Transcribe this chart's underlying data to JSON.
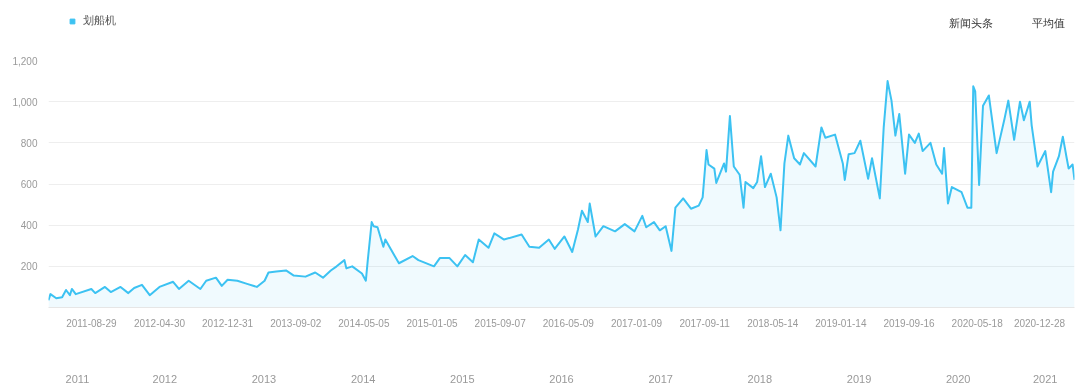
{
  "chart_data": {
    "type": "area",
    "series": [
      {
        "name": "划船机",
        "color": "#3cc2f2",
        "x": [
          "2011-03-28",
          "2011-04-04",
          "2011-04-25",
          "2011-05-16",
          "2011-05-30",
          "2011-06-13",
          "2011-06-20",
          "2011-07-04",
          "2011-08-29",
          "2011-09-12",
          "2011-10-17",
          "2011-11-07",
          "2011-12-12",
          "2012-01-09",
          "2012-01-30",
          "2012-02-27",
          "2012-03-26",
          "2012-04-30",
          "2012-06-18",
          "2012-07-09",
          "2012-08-13",
          "2012-09-24",
          "2012-10-15",
          "2012-11-19",
          "2012-12-10",
          "2012-12-31",
          "2013-02-04",
          "2013-03-11",
          "2013-04-15",
          "2013-05-13",
          "2013-05-27",
          "2013-06-24",
          "2013-07-29",
          "2013-08-26",
          "2013-10-07",
          "2013-11-11",
          "2013-12-09",
          "2014-01-06",
          "2014-01-27",
          "2014-02-24",
          "2014-03-03",
          "2014-03-24",
          "2014-04-28",
          "2014-05-12",
          "2014-05-19",
          "2014-06-02",
          "2014-06-09",
          "2014-06-23",
          "2014-07-14",
          "2014-07-21",
          "2014-08-11",
          "2014-09-08",
          "2014-10-27",
          "2014-11-17",
          "2015-01-12",
          "2015-02-02",
          "2015-03-09",
          "2015-04-06",
          "2015-05-04",
          "2015-06-01",
          "2015-06-22",
          "2015-07-27",
          "2015-08-17",
          "2015-09-21",
          "2015-11-23",
          "2015-12-21",
          "2016-01-25",
          "2016-02-29",
          "2016-03-21",
          "2016-04-25",
          "2016-05-23",
          "2016-06-13",
          "2016-06-27",
          "2016-07-18",
          "2016-07-25",
          "2016-08-15",
          "2016-09-12",
          "2016-10-24",
          "2016-11-28",
          "2017-01-02",
          "2017-01-30",
          "2017-02-13",
          "2017-03-13",
          "2017-04-03",
          "2017-04-24",
          "2017-05-15",
          "2017-05-29",
          "2017-06-26",
          "2017-07-24",
          "2017-08-21",
          "2017-09-04",
          "2017-09-18",
          "2017-09-25",
          "2017-10-16",
          "2017-10-23",
          "2017-11-20",
          "2017-11-27",
          "2017-12-11",
          "2017-12-25",
          "2018-01-15",
          "2018-01-29",
          "2018-02-05",
          "2018-03-05",
          "2018-03-19",
          "2018-04-02",
          "2018-04-16",
          "2018-05-07",
          "2018-05-28",
          "2018-06-11",
          "2018-06-25",
          "2018-07-09",
          "2018-07-30",
          "2018-08-20",
          "2018-09-03",
          "2018-10-15",
          "2018-11-05",
          "2018-11-19",
          "2018-12-24",
          "2019-01-21",
          "2019-01-28",
          "2019-02-11",
          "2019-03-04",
          "2019-03-25",
          "2019-04-22",
          "2019-05-06",
          "2019-06-03",
          "2019-06-17",
          "2019-07-01",
          "2019-07-15",
          "2019-07-29",
          "2019-08-12",
          "2019-09-02",
          "2019-09-16",
          "2019-10-07",
          "2019-10-21",
          "2019-11-04",
          "2019-12-02",
          "2019-12-23",
          "2020-01-13",
          "2020-01-20",
          "2020-02-03",
          "2020-02-17",
          "2020-03-23",
          "2020-04-13",
          "2020-04-27",
          "2020-05-04",
          "2020-05-11",
          "2020-05-25",
          "2020-06-08",
          "2020-06-29",
          "2020-07-27",
          "2020-08-24",
          "2020-09-07",
          "2020-09-28",
          "2020-10-19",
          "2020-11-02",
          "2020-11-23",
          "2020-11-30",
          "2020-12-21",
          "2021-01-18",
          "2021-02-08",
          "2021-02-15",
          "2021-03-08",
          "2021-03-22",
          "2021-04-05",
          "2021-04-12",
          "2021-04-26",
          "2021-05-03"
        ],
        "values": [
          35,
          65,
          45,
          50,
          85,
          60,
          90,
          65,
          90,
          70,
          100,
          75,
          100,
          70,
          95,
          110,
          60,
          100,
          125,
          90,
          130,
          90,
          130,
          145,
          105,
          135,
          130,
          115,
          100,
          130,
          170,
          175,
          180,
          155,
          150,
          170,
          145,
          180,
          200,
          230,
          190,
          200,
          165,
          130,
          230,
          415,
          395,
          390,
          295,
          330,
          280,
          215,
          250,
          230,
          200,
          240,
          240,
          200,
          255,
          220,
          330,
          290,
          360,
          330,
          355,
          295,
          290,
          330,
          285,
          345,
          270,
          380,
          470,
          415,
          505,
          345,
          395,
          370,
          405,
          370,
          445,
          390,
          415,
          375,
          395,
          275,
          485,
          530,
          480,
          495,
          535,
          765,
          695,
          675,
          605,
          700,
          660,
          930,
          685,
          645,
          485,
          610,
          580,
          610,
          735,
          585,
          650,
          535,
          375,
          700,
          835,
          725,
          695,
          750,
          685,
          875,
          825,
          840,
          700,
          620,
          745,
          750,
          810,
          625,
          725,
          530,
          875,
          1100,
          1005,
          835,
          940,
          650,
          840,
          800,
          845,
          760,
          800,
          695,
          650,
          775,
          505,
          585,
          560,
          485,
          485,
          1075,
          1050,
          595,
          980,
          1030,
          750,
          915,
          1005,
          815,
          1000,
          910,
          1000,
          885,
          685,
          760,
          560,
          660,
          735,
          830,
          725,
          675,
          695,
          620
        ]
      }
    ],
    "xlim": [
      "2011-03-28",
      "2021-05-03"
    ],
    "xticks": [
      "2011-08-29",
      "2012-04-30",
      "2012-12-31",
      "2013-09-02",
      "2014-05-05",
      "2015-01-05",
      "2015-09-07",
      "2016-05-09",
      "2017-01-09",
      "2017-09-11",
      "2018-05-14",
      "2019-01-14",
      "2019-09-16",
      "2020-05-18",
      "2020-12-28"
    ],
    "ylim": [
      0,
      1200
    ],
    "yticks": [
      {
        "value": 0,
        "label": null
      },
      200,
      400,
      600,
      800,
      {
        "value": 1000,
        "label": "1,000"
      },
      {
        "value": 1200,
        "label": "1,200"
      }
    ],
    "grid": "y",
    "legend": "top left",
    "marker": "none",
    "annotations": [
      "新闻头条",
      "平均值",
      "2011",
      "2012",
      "2013",
      "2014",
      "2015",
      "2016",
      "2017",
      "2018",
      "2019",
      "2020",
      "2021"
    ]
  }
}
